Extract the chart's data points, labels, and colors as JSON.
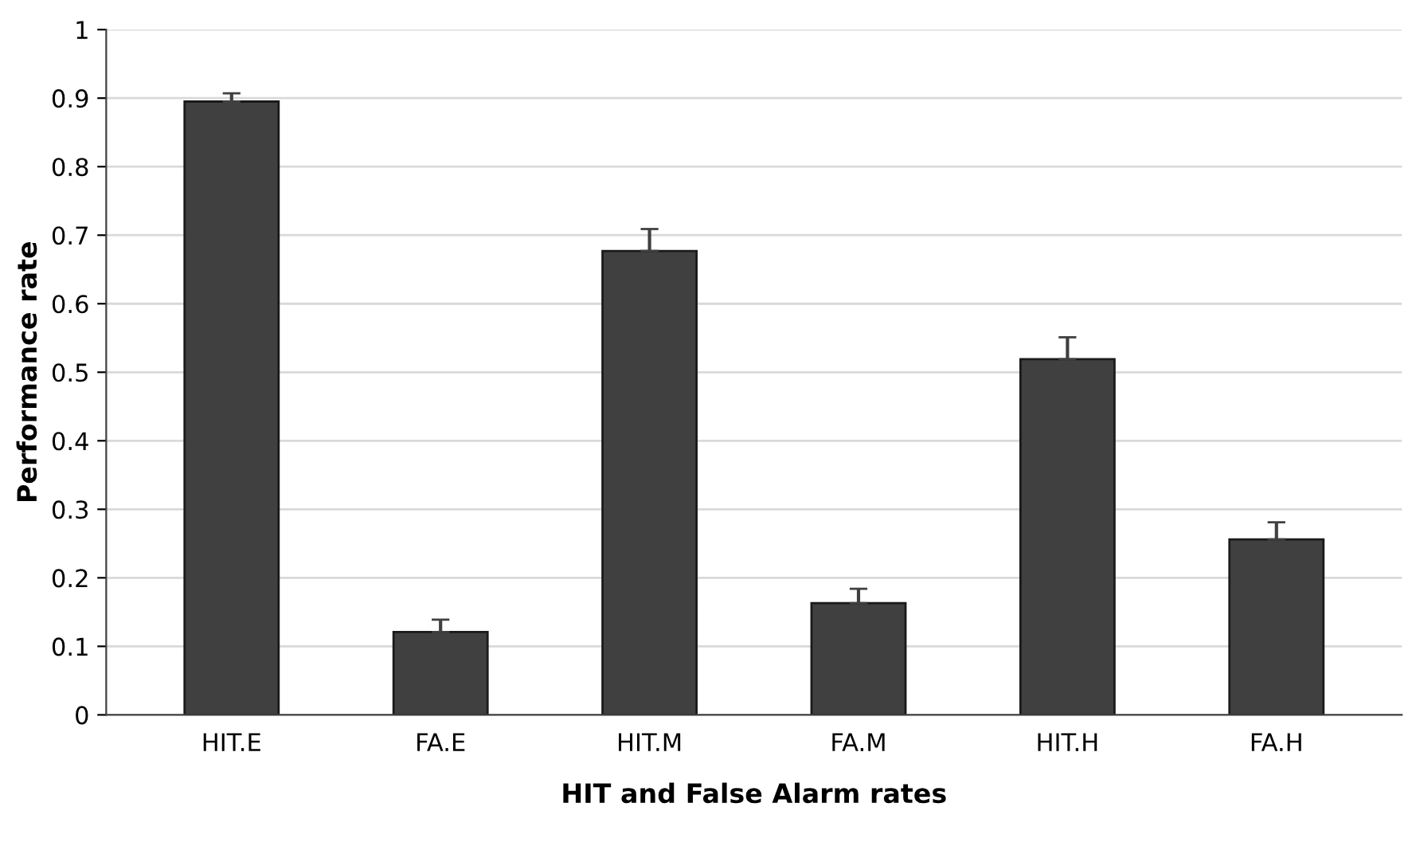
{
  "chart_data": {
    "type": "bar",
    "xlabel": "HIT and False Alarm rates",
    "ylabel": "Performance rate",
    "categories": [
      "HIT.E",
      "FA.E",
      "HIT.M",
      "FA.M",
      "HIT.H",
      "FA.H"
    ],
    "values": [
      0.895,
      0.121,
      0.677,
      0.163,
      0.519,
      0.256
    ],
    "errors": [
      [
        0.895,
        0.907
      ],
      [
        0.121,
        0.139
      ],
      [
        0.677,
        0.709
      ],
      [
        0.163,
        0.184
      ],
      [
        0.519,
        0.551
      ],
      [
        0.256,
        0.281
      ]
    ],
    "color": "#404040",
    "ylim": [
      0,
      1
    ],
    "yticks": [
      0,
      0.1,
      0.2,
      0.3,
      0.4,
      0.5,
      0.6,
      0.7,
      0.8,
      0.9,
      1
    ],
    "grid": "y",
    "legend": false
  }
}
